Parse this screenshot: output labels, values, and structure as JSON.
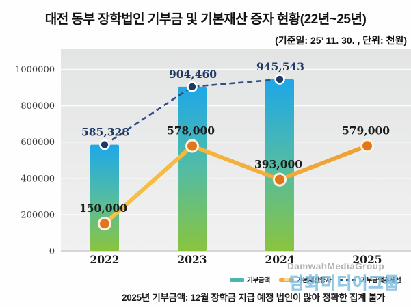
{
  "header": {
    "title": "대전 동부 장학법인 기부금 및 기본재산 증자 현황(22년~25년)",
    "subtitle": "(기준일: 25’ 11. 30. , 단위: 천원)"
  },
  "chart_data": {
    "type": "bar",
    "subtype": "combo bar + line + dashed trend line",
    "categories": [
      "2022",
      "2023",
      "2024",
      "2025"
    ],
    "series": [
      {
        "name": "기부금액",
        "type": "bar",
        "values": [
          585328,
          904460,
          945543,
          null
        ],
        "value_labels": [
          "585,328",
          "904,460",
          "945,543",
          ""
        ],
        "label_color": "#1F3864",
        "gradient_top": "#1EA7E8",
        "gradient_mid": "#52BCA4",
        "gradient_bottom": "#8AC43E"
      },
      {
        "name": "기본재산증자",
        "type": "line",
        "values": [
          150000,
          578000,
          393000,
          579000
        ],
        "value_labels": [
          "150,000",
          "578,000",
          "393,000",
          "579,000"
        ],
        "label_color": "#1b1b1b",
        "line_color_start": "#F7C447",
        "line_color_end": "#EF9E31",
        "marker_fill": "#E0761E",
        "marker_ring": "#FCF3DE"
      },
      {
        "name": "기부금액추세선",
        "type": "dashed_line",
        "values": [
          585328,
          904460,
          945543,
          null
        ],
        "line_color": "#2E4F82",
        "marker_fill": "#1C3A63",
        "marker_ring": "#FFFFFF"
      }
    ],
    "y_ticks": [
      0,
      200000,
      400000,
      600000,
      800000,
      1000000
    ],
    "y_tick_labels": [
      "0",
      "200000",
      "400000",
      "600000",
      "800000",
      "1000000"
    ],
    "ylim": [
      0,
      1000000
    ],
    "grid": true,
    "legend_position": "bottom-right",
    "plot_bg_top": "#e3e4e4",
    "plot_bg_bottom": "#f1f1f1"
  },
  "legend": {
    "items": [
      {
        "label": "기부금액"
      },
      {
        "label": "기본재산증자"
      },
      {
        "label": "기부금액추세선"
      }
    ]
  },
  "watermark": {
    "latin": "DamwahMediaGroup",
    "korean": "담화미디어그룹"
  },
  "footnote": "2025년 기부금액: 12월 장학금 지급 예정 법인이 많아 정확한 집계 불가"
}
